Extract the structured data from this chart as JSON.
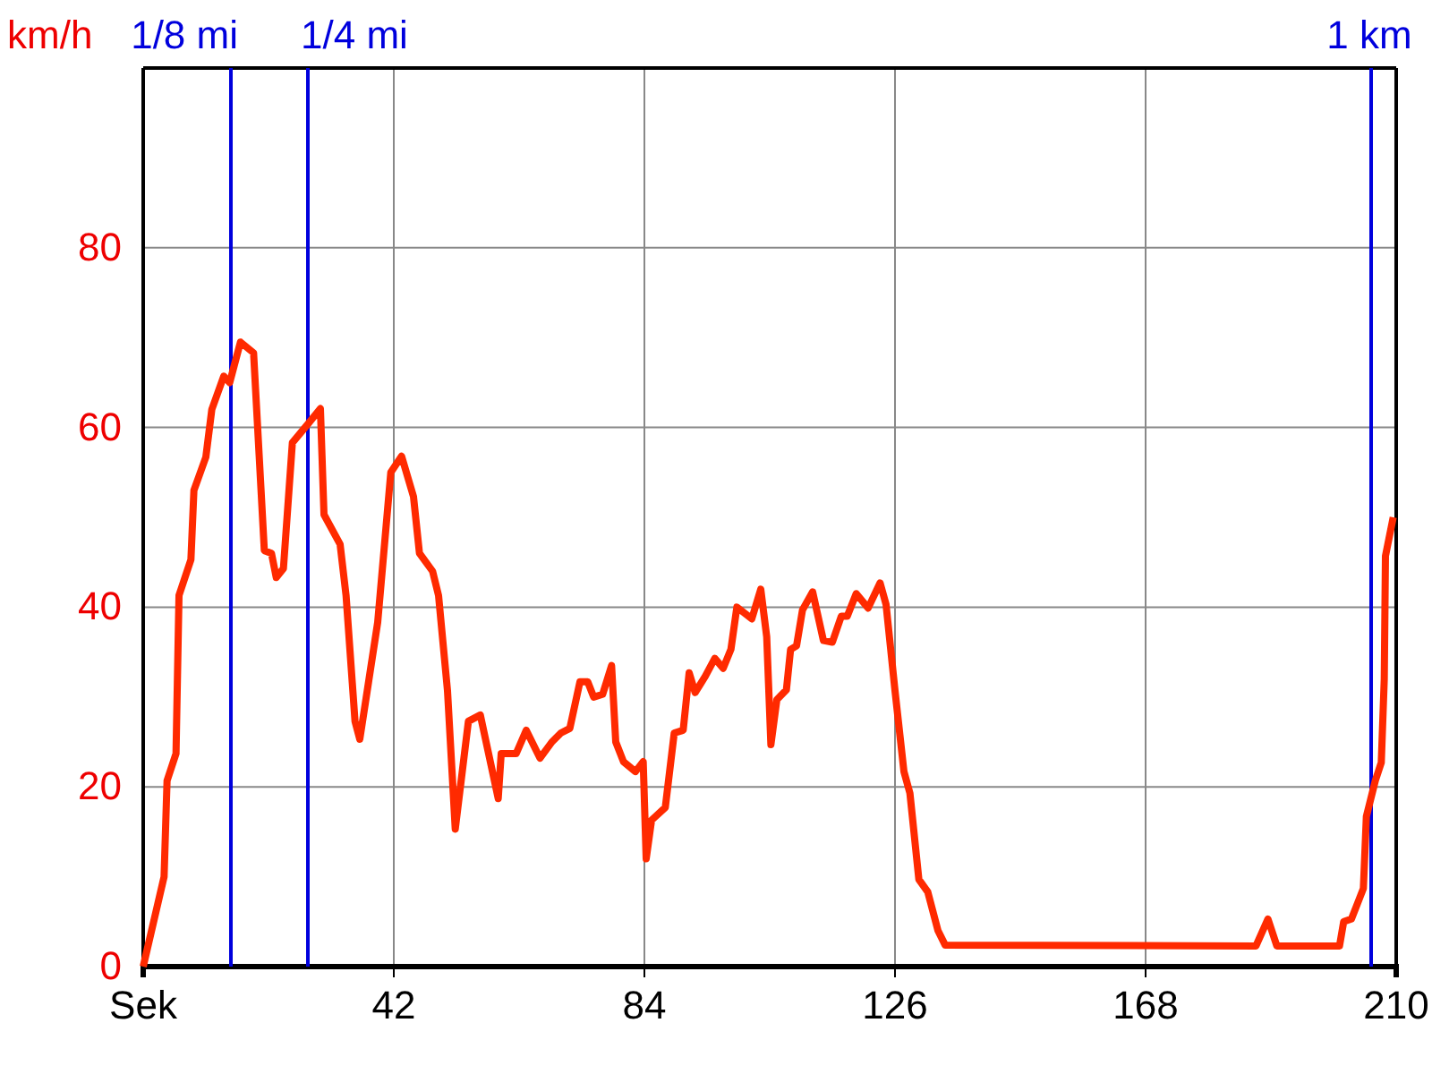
{
  "chart_data": {
    "type": "line",
    "ylabel": "km/h",
    "x": [
      0,
      3.5,
      4,
      5.5,
      6,
      8,
      8.5,
      10.5,
      11.5,
      13.5,
      14.5,
      16.3,
      18.5,
      20.3,
      21.5,
      22.3,
      23.5,
      25,
      27.5,
      29.7,
      30.3,
      33,
      34,
      35.5,
      36.3,
      39.3,
      41.5,
      43.3,
      45.3,
      46.3,
      48.5,
      49.5,
      51,
      52.3,
      54.5,
      56.5,
      59.5,
      60,
      62.5,
      64.2,
      66.5,
      68.5,
      70,
      71.5,
      73.2,
      74.5,
      75.5,
      77,
      78.5,
      79.2,
      80.5,
      82.5,
      83.8,
      84.3,
      85.2,
      87.5,
      89,
      90.5,
      91.5,
      92.5,
      94.2,
      95.8,
      97.2,
      98.5,
      99.5,
      102,
      103.5,
      104.5,
      105.2,
      106.2,
      107.8,
      108.5,
      109.5,
      110.5,
      112.2,
      114,
      115.5,
      117,
      118,
      119.5,
      121.5,
      123.5,
      124.5,
      126,
      127.5,
      128.5,
      130,
      131.5,
      133.2,
      134.4,
      186.5,
      188.5,
      190,
      200.5,
      201.2,
      202.5,
      204.5,
      205,
      206.5,
      207.5,
      208,
      208.2,
      209.5
    ],
    "series": [
      {
        "color": "#ff2a00",
        "values": [
          0,
          10,
          20.7,
          23.7,
          41.3,
          45.3,
          53,
          56.7,
          62,
          65.7,
          65,
          69.5,
          68.3,
          46.3,
          46,
          43.3,
          44.3,
          58.3,
          60.3,
          62.1,
          50.3,
          47,
          41.3,
          27.3,
          25.3,
          38.3,
          55,
          56.8,
          52.3,
          46,
          44,
          41.3,
          30.7,
          15.3,
          27.3,
          28,
          18.7,
          23.7,
          23.7,
          26.3,
          23.2,
          25,
          26,
          26.5,
          31.7,
          31.7,
          30,
          30.3,
          33.5,
          25,
          22.8,
          21.7,
          22.8,
          12,
          16.3,
          17.7,
          26,
          26.3,
          32.7,
          30.5,
          32.3,
          34.3,
          33.2,
          35.3,
          40,
          38.7,
          42,
          36.7,
          24.7,
          29.7,
          30.8,
          35.3,
          35.7,
          39.7,
          41.7,
          36.3,
          36.1,
          39,
          39,
          41.5,
          39.9,
          42.7,
          40.3,
          30.7,
          21.7,
          19.3,
          9.7,
          8.3,
          4,
          2.4,
          2.3,
          5.3,
          2.3,
          2.3,
          5,
          5.3,
          8.7,
          16.7,
          20.7,
          22.7,
          32,
          45.7,
          50
        ]
      }
    ],
    "xlim": [
      0,
      210
    ],
    "xticks": [
      {
        "value": 0,
        "label": "Sek"
      },
      42,
      84,
      126,
      168,
      210
    ],
    "ylim": [
      0,
      100
    ],
    "yticks": [
      0,
      20,
      40,
      60,
      80
    ],
    "grid": true,
    "ref_lines": [
      {
        "axis": "x",
        "value": 14.7,
        "label": "1/8 mi",
        "color": "#0000dd"
      },
      {
        "axis": "x",
        "value": 27.6,
        "label": "1/4 mi",
        "color": "#0000dd"
      },
      {
        "axis": "x",
        "value": 205.8,
        "label": "1 km",
        "color": "#0000dd"
      }
    ]
  }
}
